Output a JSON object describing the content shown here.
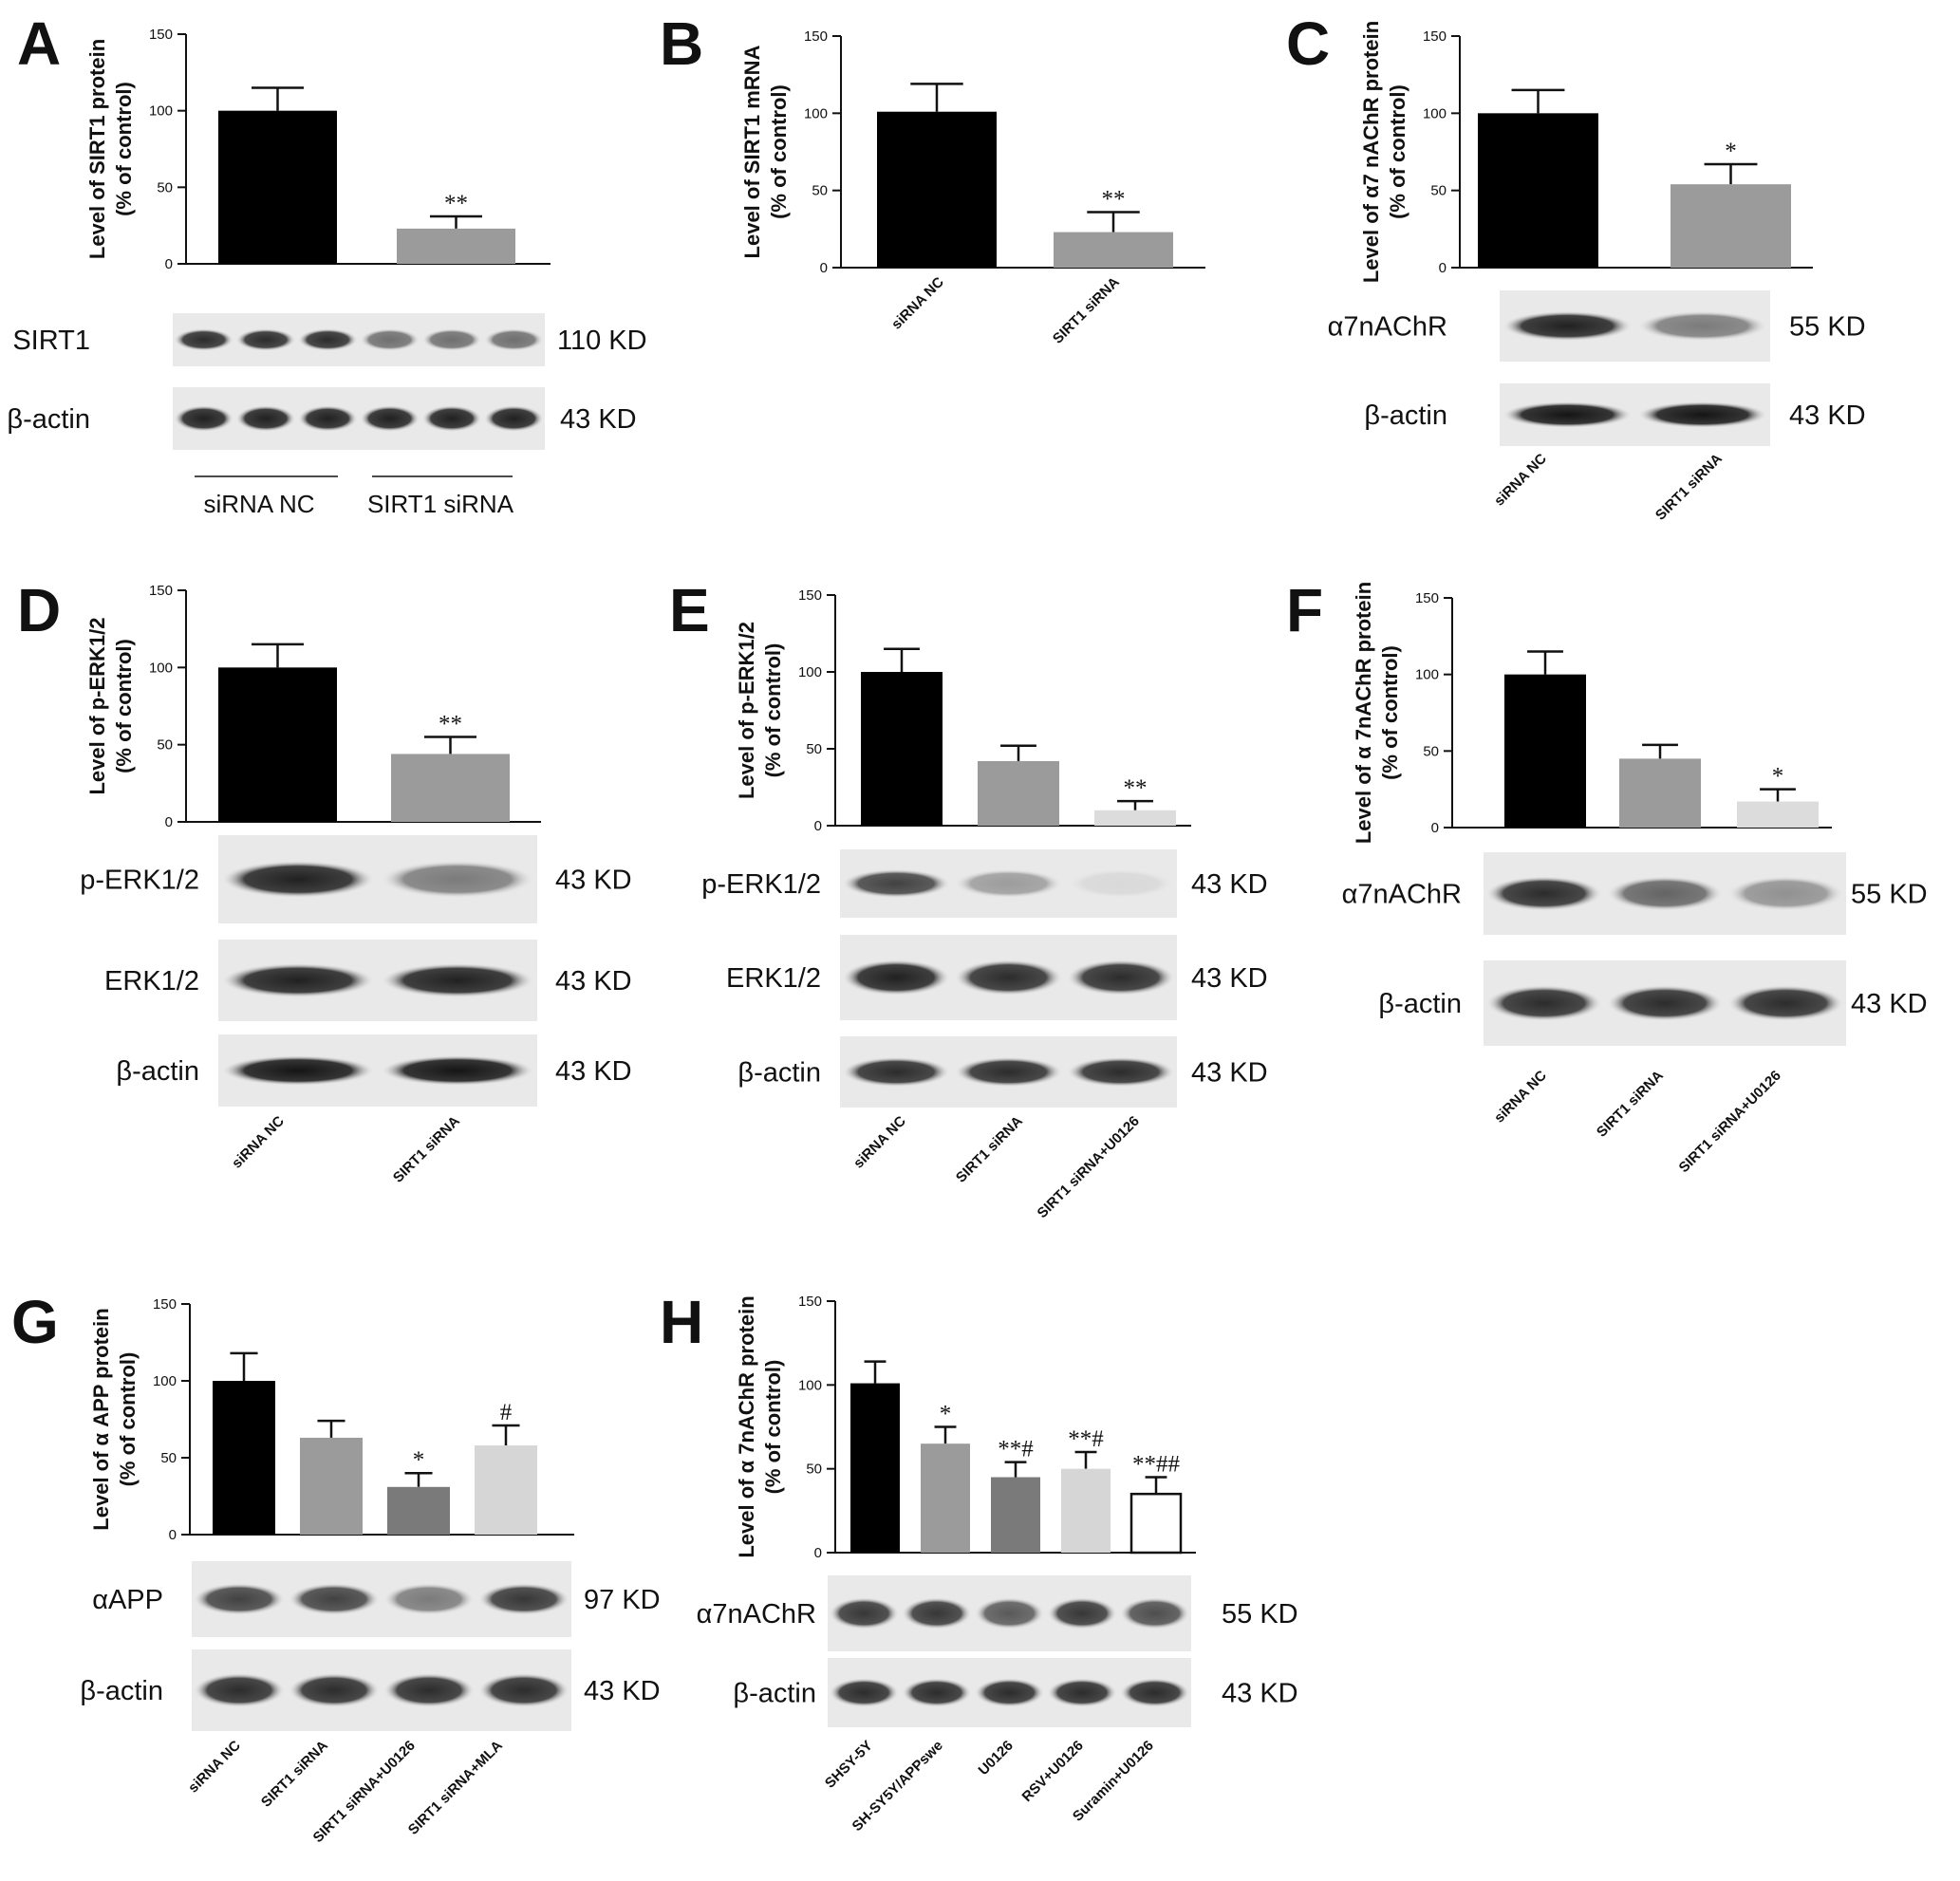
{
  "chart_data": [
    {
      "id": "A",
      "type": "bar",
      "panel_label": "A",
      "ylabel": [
        "Level of SIRT1 protein",
        "(% of control)"
      ],
      "ylim": [
        0,
        150
      ],
      "yticks": [
        0,
        50,
        100,
        150
      ],
      "categories": [
        "siRNA NC",
        "SIRT1 siRNA"
      ],
      "category_style": "underlined",
      "values": [
        100,
        23
      ],
      "errors": [
        15,
        8
      ],
      "significance": [
        "",
        "**"
      ],
      "colors": [
        "#000000",
        "#9b9b9b"
      ],
      "blots": [
        {
          "label": "SIRT1",
          "size": "110 KD",
          "bands": [
            0.85,
            0.85,
            0.85,
            0.55,
            0.55,
            0.55
          ]
        },
        {
          "label": "β-actin",
          "size": "43 KD",
          "bands": [
            0.9,
            0.9,
            0.9,
            0.9,
            0.9,
            0.9
          ]
        }
      ]
    },
    {
      "id": "B",
      "type": "bar",
      "panel_label": "B",
      "ylabel": [
        "Level of SIRT1 mRNA",
        "(% of control)"
      ],
      "ylim": [
        0,
        150
      ],
      "yticks": [
        0,
        50,
        100,
        150
      ],
      "categories": [
        "siRNA NC",
        "SIRT1 siRNA"
      ],
      "values": [
        101,
        23
      ],
      "errors": [
        18,
        13
      ],
      "significance": [
        "",
        "**"
      ],
      "colors": [
        "#000000",
        "#9b9b9b"
      ],
      "blots": []
    },
    {
      "id": "C",
      "type": "bar",
      "panel_label": "C",
      "ylabel": [
        "Level of α7 nAChR protein",
        "(% of control)"
      ],
      "ylim": [
        0,
        150
      ],
      "yticks": [
        0,
        50,
        100,
        150
      ],
      "categories": [
        "siRNA NC",
        "SIRT1 siRNA"
      ],
      "values": [
        100,
        54
      ],
      "errors": [
        15,
        13
      ],
      "significance": [
        "",
        "*"
      ],
      "colors": [
        "#000000",
        "#9b9b9b"
      ],
      "blots": [
        {
          "label": "α7nAChR",
          "size": "55 KD",
          "bands": [
            0.9,
            0.5
          ]
        },
        {
          "label": "β-actin",
          "size": "43 KD",
          "bands": [
            0.95,
            0.95
          ]
        }
      ]
    },
    {
      "id": "D",
      "type": "bar",
      "panel_label": "D",
      "ylabel": [
        "Level of p-ERK1/2",
        "(% of control)"
      ],
      "ylim": [
        0,
        150
      ],
      "yticks": [
        0,
        50,
        100,
        150
      ],
      "categories": [
        "siRNA NC",
        "SIRT1 siRNA"
      ],
      "values": [
        100,
        44
      ],
      "errors": [
        15,
        11
      ],
      "significance": [
        "",
        "**"
      ],
      "colors": [
        "#000000",
        "#9b9b9b"
      ],
      "blots": [
        {
          "label": "p-ERK1/2",
          "size": "43 KD",
          "bands": [
            0.9,
            0.5
          ]
        },
        {
          "label": "ERK1/2",
          "size": "43 KD",
          "bands": [
            0.9,
            0.9
          ]
        },
        {
          "label": "β-actin",
          "size": "43 KD",
          "bands": [
            0.95,
            0.95
          ]
        }
      ]
    },
    {
      "id": "E",
      "type": "bar",
      "panel_label": "E",
      "ylabel": [
        "Level of p-ERK1/2",
        "(% of control)"
      ],
      "ylim": [
        0,
        150
      ],
      "yticks": [
        0,
        50,
        100,
        150
      ],
      "categories": [
        "siRNA NC",
        "SIRT1 siRNA",
        "SIRT1 siRNA+U0126"
      ],
      "values": [
        100,
        42,
        10
      ],
      "errors": [
        15,
        10,
        6
      ],
      "significance": [
        "",
        "",
        "**"
      ],
      "colors": [
        "#000000",
        "#9b9b9b",
        "#dcdcdc"
      ],
      "blots": [
        {
          "label": "p-ERK1/2",
          "size": "43 KD",
          "bands": [
            0.75,
            0.35,
            0.08
          ]
        },
        {
          "label": "ERK1/2",
          "size": "43 KD",
          "bands": [
            0.9,
            0.85,
            0.85
          ]
        },
        {
          "label": "β-actin",
          "size": "43 KD",
          "bands": [
            0.85,
            0.85,
            0.85
          ]
        }
      ]
    },
    {
      "id": "F",
      "type": "bar",
      "panel_label": "F",
      "ylabel": [
        "Level of α 7nAChR protein",
        "(% of control)"
      ],
      "ylim": [
        0,
        150
      ],
      "yticks": [
        0,
        50,
        100,
        150
      ],
      "categories": [
        "siRNA NC",
        "SIRT1 siRNA",
        "SIRT1 siRNA+U0126"
      ],
      "values": [
        100,
        45,
        17
      ],
      "errors": [
        15,
        9,
        8
      ],
      "significance": [
        "",
        "",
        "*"
      ],
      "colors": [
        "#000000",
        "#9b9b9b",
        "#dcdcdc"
      ],
      "blots": [
        {
          "label": "α7nAChR",
          "size": "55 KD",
          "bands": [
            0.85,
            0.6,
            0.4
          ]
        },
        {
          "label": "β-actin",
          "size": "43 KD",
          "bands": [
            0.85,
            0.85,
            0.85
          ]
        }
      ]
    },
    {
      "id": "G",
      "type": "bar",
      "panel_label": "G",
      "ylabel": [
        "Level of α APP protein",
        "(% of control)"
      ],
      "ylim": [
        0,
        150
      ],
      "yticks": [
        0,
        50,
        100,
        150
      ],
      "categories": [
        "siRNA NC",
        "SIRT1 siRNA",
        "SIRT1 siRNA+U0126",
        "SIRT1 siRNA+MLA"
      ],
      "values": [
        100,
        63,
        31,
        58
      ],
      "errors": [
        18,
        11,
        9,
        13
      ],
      "significance": [
        "",
        "",
        "*",
        "#"
      ],
      "colors": [
        "#000000",
        "#9b9b9b",
        "#7a7a7a",
        "#d6d6d6"
      ],
      "blots": [
        {
          "label": "αAPP",
          "size": "97 KD",
          "bands": [
            0.75,
            0.75,
            0.5,
            0.8
          ]
        },
        {
          "label": "β-actin",
          "size": "43 KD",
          "bands": [
            0.85,
            0.85,
            0.85,
            0.85
          ]
        }
      ]
    },
    {
      "id": "H",
      "type": "bar",
      "panel_label": "H",
      "ylabel": [
        "Level of α 7nAChR protein",
        "(% of control)"
      ],
      "ylim": [
        0,
        150
      ],
      "yticks": [
        0,
        50,
        100,
        150
      ],
      "categories": [
        "SHSY-5Y",
        "SH-SY5Y/APPswe",
        "U0126",
        "RSV+U0126",
        "Suramin+U0126"
      ],
      "values": [
        101,
        65,
        45,
        50,
        35
      ],
      "errors": [
        13,
        10,
        9,
        10,
        10
      ],
      "significance": [
        "",
        "*",
        "**#",
        "**#",
        "**##"
      ],
      "colors": [
        "#000000",
        "#9b9b9b",
        "#7a7a7a",
        "#d6d6d6",
        "#ffffff"
      ],
      "blots": [
        {
          "label": "α7nAChR",
          "size": "55 KD",
          "bands": [
            0.8,
            0.8,
            0.65,
            0.8,
            0.7
          ]
        },
        {
          "label": "β-actin",
          "size": "43 KD",
          "bands": [
            0.85,
            0.85,
            0.85,
            0.85,
            0.85
          ]
        }
      ]
    }
  ]
}
